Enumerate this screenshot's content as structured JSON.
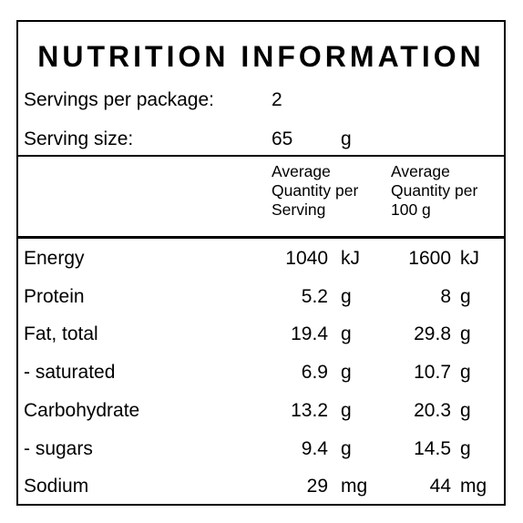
{
  "title": "NUTRITION INFORMATION",
  "servings": {
    "per_package_label": "Servings per package:",
    "per_package_value": "2",
    "size_label": "Serving size:",
    "size_value": "65",
    "size_unit": "g"
  },
  "columns": {
    "per_serving": [
      "Average",
      "Quantity per",
      "Serving"
    ],
    "per_100g": [
      "Average",
      "Quantity per",
      "100 g"
    ]
  },
  "rows": [
    {
      "name": "Energy",
      "serving": "1040",
      "serving_unit": "kJ",
      "per100": "1600",
      "per100_unit": "kJ"
    },
    {
      "name": "Protein",
      "serving": "5.2",
      "serving_unit": "g",
      "per100": "8",
      "per100_unit": "g"
    },
    {
      "name": "Fat, total",
      "serving": "19.4",
      "serving_unit": "g",
      "per100": "29.8",
      "per100_unit": "g"
    },
    {
      "name": "- saturated",
      "serving": "6.9",
      "serving_unit": "g",
      "per100": "10.7",
      "per100_unit": "g"
    },
    {
      "name": "Carbohydrate",
      "serving": "13.2",
      "serving_unit": "g",
      "per100": "20.3",
      "per100_unit": "g"
    },
    {
      "name": "- sugars",
      "serving": "9.4",
      "serving_unit": "g",
      "per100": "14.5",
      "per100_unit": "g"
    },
    {
      "name": "Sodium",
      "serving": "29",
      "serving_unit": "mg",
      "per100": "44",
      "per100_unit": "mg"
    }
  ]
}
